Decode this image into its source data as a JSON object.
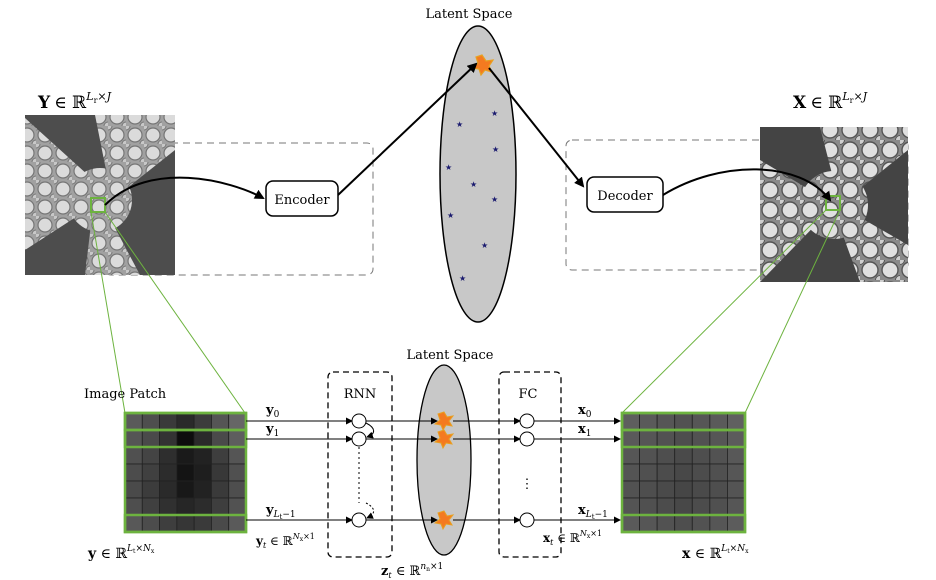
{
  "top": {
    "latent_title": "Latent Space",
    "input_label": {
      "symbol": "Y",
      "set": "∈ ℝ",
      "sup_base": "L",
      "sup_sub": "r",
      "sup_rest": "×J"
    },
    "output_label": {
      "symbol": "X",
      "set": "∈ ℝ",
      "sup_base": "L",
      "sup_sub": "r",
      "sup_rest": "×J"
    },
    "encoder_label": "Encoder",
    "decoder_label": "Decoder"
  },
  "bottom": {
    "latent_title": "Latent Space",
    "patch_title": "Image Patch",
    "rnn_label": "RNN",
    "fc_label": "FC",
    "inputs": {
      "y0": {
        "sym": "y",
        "sub": "0"
      },
      "y1": {
        "sym": "y",
        "sub": "1"
      },
      "ylast": {
        "sym": "y",
        "sub": "L",
        "subsub": "t",
        "subrest": "−1"
      }
    },
    "outputs": {
      "x0": {
        "sym": "x",
        "sub": "0"
      },
      "x1": {
        "sym": "x",
        "sub": "1"
      },
      "xlast": {
        "sym": "x",
        "sub": "L",
        "subsub": "t",
        "subrest": "−1"
      }
    },
    "yt_label": {
      "sym": "y",
      "sub": "t",
      "set": " ∈ ℝ",
      "sup_base": "N",
      "sup_sub": "x",
      "sup_rest": "×1"
    },
    "xt_label": {
      "sym": "x",
      "sub": "t",
      "set": " ∈ ℝ",
      "sup_base": "N",
      "sup_sub": "x",
      "sup_rest": "×1"
    },
    "zt_label": {
      "sym": "z",
      "sub": "t",
      "set": " ∈ ℝ",
      "sup_base": "n",
      "sup_sub": "n",
      "sup_rest": "×1"
    },
    "y_patch_label": {
      "sym": "y",
      "set": " ∈ ℝ",
      "sup_base": "L",
      "sup_sub": "t",
      "sup_rest": "×N",
      "sup_sub2": "x"
    },
    "x_patch_label": {
      "sym": "x",
      "set": " ∈ ℝ",
      "sup_base": "L",
      "sup_sub": "t",
      "sup_rest": "×N",
      "sup_sub2": "x"
    }
  },
  "colors": {
    "patch_outline": "#6db33f",
    "latent_fill": "#c8c8c8",
    "star_fill": "#f47a20",
    "star_stroke": "#e8a020",
    "dot_color": "#1a1a6e",
    "dashed": "#777777"
  },
  "icons": [
    "starfish-image-input",
    "starfish-image-output",
    "star-marker",
    "dot-marker"
  ]
}
